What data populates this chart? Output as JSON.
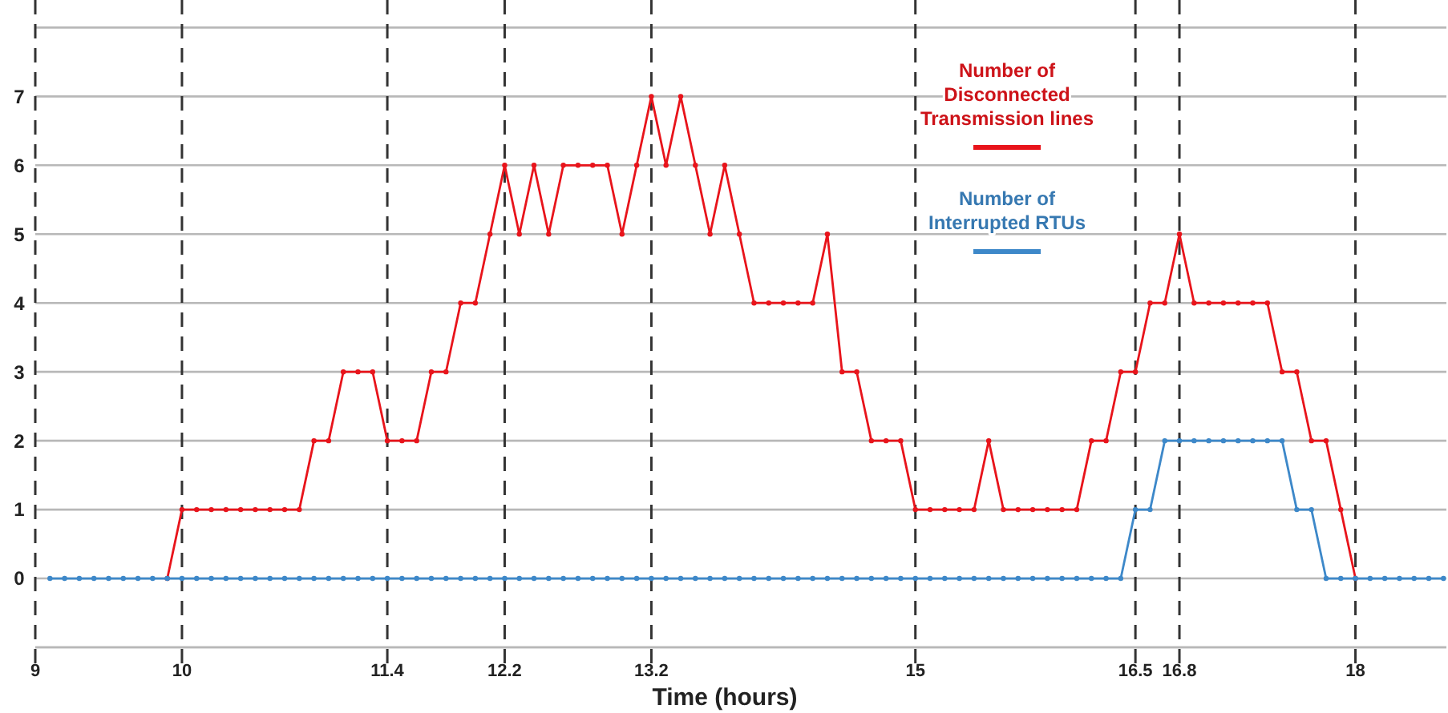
{
  "chart_data": {
    "type": "line",
    "xlabel": "Time (hours)",
    "xlim": [
      9,
      18.62
    ],
    "xticks": [
      9,
      10,
      11.4,
      12.2,
      13.2,
      15,
      16.5,
      16.8,
      18
    ],
    "ylim": [
      -1,
      8.4
    ],
    "yticks": [
      {
        "value": -1,
        "label": null
      },
      0,
      1,
      2,
      3,
      4,
      5,
      6,
      7,
      {
        "value": 8,
        "label": null
      }
    ],
    "grid": true,
    "legend": "top right",
    "marker": "circle",
    "line_style": "solid",
    "series": [
      {
        "name": "Number of Disconnected Transmission lines",
        "color": "#e8141b",
        "x": [
          9.9,
          10,
          10.1,
          10.2,
          10.3,
          10.4,
          10.5,
          10.6,
          10.7,
          10.8,
          10.9,
          11,
          11.1,
          11.2,
          11.3,
          11.4,
          11.5,
          11.6,
          11.7,
          11.8,
          11.9,
          12,
          12.1,
          12.2,
          12.3,
          12.4,
          12.5,
          12.6,
          12.7,
          12.8,
          12.9,
          13,
          13.1,
          13.2,
          13.3,
          13.4,
          13.5,
          13.6,
          13.7,
          13.8,
          13.9,
          14,
          14.1,
          14.2,
          14.3,
          14.4,
          14.5,
          14.6,
          14.7,
          14.8,
          14.9,
          15,
          15.1,
          15.2,
          15.3,
          15.4,
          15.5,
          15.6,
          15.7,
          15.8,
          15.9,
          16,
          16.1,
          16.2,
          16.3,
          16.4,
          16.5,
          16.6,
          16.7,
          16.8,
          16.9,
          17,
          17.1,
          17.2,
          17.3,
          17.4,
          17.5,
          17.6,
          17.7,
          17.8,
          17.9,
          18
        ],
        "values": [
          0,
          1,
          1,
          1,
          1,
          1,
          1,
          1,
          1,
          1,
          2,
          2,
          3,
          3,
          3,
          2,
          2,
          2,
          3,
          3,
          4,
          4,
          5,
          6,
          5,
          6,
          5,
          6,
          6,
          6,
          6,
          5,
          6,
          7,
          6,
          7,
          6,
          5,
          6,
          5,
          4,
          4,
          4,
          4,
          4,
          5,
          3,
          3,
          2,
          2,
          2,
          1,
          1,
          1,
          1,
          1,
          2,
          1,
          1,
          1,
          1,
          1,
          1,
          2,
          2,
          3,
          3,
          4,
          4,
          5,
          4,
          4,
          4,
          4,
          4,
          4,
          3,
          3,
          2,
          2,
          1,
          0
        ]
      },
      {
        "name": "Number of Interrupted RTUs",
        "color": "#3d88c9",
        "x": [
          9.1,
          9.2,
          9.3,
          9.4,
          9.5,
          9.6,
          9.7,
          9.8,
          9.9,
          10,
          10.1,
          10.2,
          10.3,
          10.4,
          10.5,
          10.6,
          10.7,
          10.8,
          10.9,
          11,
          11.1,
          11.2,
          11.3,
          11.4,
          11.5,
          11.6,
          11.7,
          11.8,
          11.9,
          12,
          12.1,
          12.2,
          12.3,
          12.4,
          12.5,
          12.6,
          12.7,
          12.8,
          12.9,
          13,
          13.1,
          13.2,
          13.3,
          13.4,
          13.5,
          13.6,
          13.7,
          13.8,
          13.9,
          14,
          14.1,
          14.2,
          14.3,
          14.4,
          14.5,
          14.6,
          14.7,
          14.8,
          14.9,
          15,
          15.1,
          15.2,
          15.3,
          15.4,
          15.5,
          15.6,
          15.7,
          15.8,
          15.9,
          16,
          16.1,
          16.2,
          16.3,
          16.4,
          16.5,
          16.6,
          16.7,
          16.8,
          16.9,
          17,
          17.1,
          17.2,
          17.3,
          17.4,
          17.5,
          17.6,
          17.7,
          17.8,
          17.9,
          18,
          18.1,
          18.2,
          18.3,
          18.4,
          18.5,
          18.6
        ],
        "values": [
          0,
          0,
          0,
          0,
          0,
          0,
          0,
          0,
          0,
          0,
          0,
          0,
          0,
          0,
          0,
          0,
          0,
          0,
          0,
          0,
          0,
          0,
          0,
          0,
          0,
          0,
          0,
          0,
          0,
          0,
          0,
          0,
          0,
          0,
          0,
          0,
          0,
          0,
          0,
          0,
          0,
          0,
          0,
          0,
          0,
          0,
          0,
          0,
          0,
          0,
          0,
          0,
          0,
          0,
          0,
          0,
          0,
          0,
          0,
          0,
          0,
          0,
          0,
          0,
          0,
          0,
          0,
          0,
          0,
          0,
          0,
          0,
          0,
          0,
          1,
          1,
          2,
          2,
          2,
          2,
          2,
          2,
          2,
          2,
          2,
          1,
          1,
          0,
          0,
          0,
          0,
          0,
          0,
          0,
          0,
          0
        ]
      }
    ]
  }
}
